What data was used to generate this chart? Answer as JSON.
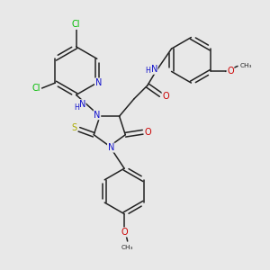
{
  "bg": "#e8e8e8",
  "bond_color": "#222222",
  "cl_color": "#00bb00",
  "n_color": "#1111cc",
  "o_color": "#cc0000",
  "s_color": "#aaaa00",
  "fig_w": 3.0,
  "fig_h": 3.0,
  "dpi": 100,
  "xlim": [
    0,
    10
  ],
  "ylim": [
    0,
    10
  ]
}
